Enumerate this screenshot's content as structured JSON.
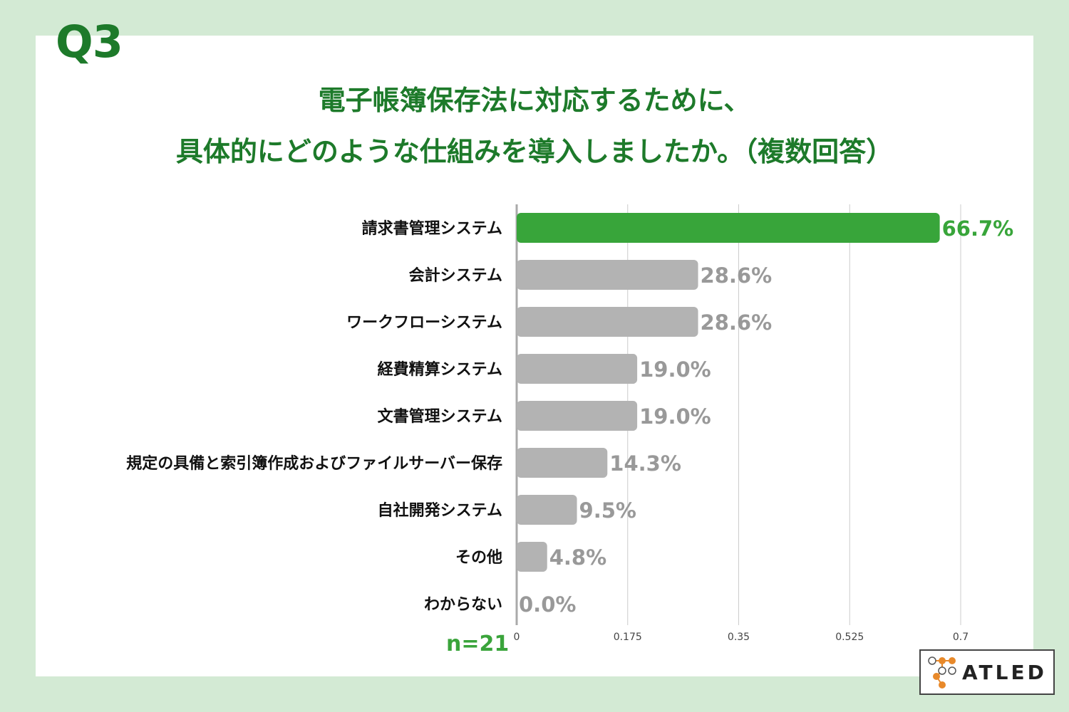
{
  "question_label": "Q3",
  "title_line1": "電子帳簿保存法に対応するために、",
  "title_line2": "具体的にどのような仕組みを導入しましたか。（複数回答）",
  "sample_size": "n=21",
  "logo": {
    "text": "ATLED",
    "icon": "network-nodes-icon",
    "color": "#e8892a"
  },
  "colors": {
    "highlight": "#38a53a",
    "bar": "#b3b3b3",
    "title": "#1d7a2a",
    "label": "#999999"
  },
  "chart_data": {
    "type": "bar",
    "orientation": "horizontal",
    "categories": [
      "請求書管理システム",
      "会計システム",
      "ワークフローシステム",
      "経費精算システム",
      "文書管理システム",
      "規定の具備と索引簿作成およびファイルサーバー保存",
      "自社開発システム",
      "その他",
      "わからない"
    ],
    "values": [
      0.667,
      0.286,
      0.286,
      0.19,
      0.19,
      0.143,
      0.095,
      0.048,
      0.0
    ],
    "value_labels": [
      "66.7%",
      "28.6%",
      "28.6%",
      "19.0%",
      "19.0%",
      "14.3%",
      "9.5%",
      "4.8%",
      "0.0%"
    ],
    "xlim": [
      0,
      0.7
    ],
    "x_ticks": [
      "0",
      "0.175",
      "0.35",
      "0.525",
      "0.7"
    ],
    "grid": true,
    "highlight_index": 0
  }
}
